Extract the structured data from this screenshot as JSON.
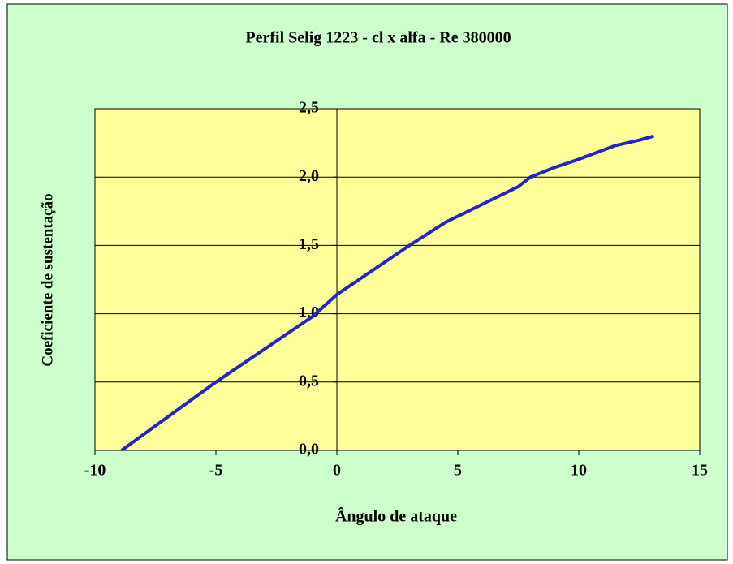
{
  "chart_data": {
    "type": "line",
    "title": "Perfil Selig 1223 - cl x alfa - Re 380000",
    "xlabel": "Ângulo de ataque",
    "ylabel": "Coeficiente de sustentação",
    "x": [
      -8.9,
      -5,
      -1,
      0,
      2,
      3,
      4.5,
      6,
      7.5,
      8,
      9,
      10,
      11.5,
      12.5,
      13.1
    ],
    "series": [
      {
        "name": "cl",
        "color": "#2424c8",
        "values": [
          0.0,
          0.5,
          0.98,
          1.14,
          1.38,
          1.5,
          1.67,
          1.8,
          1.93,
          2.0,
          2.07,
          2.13,
          2.23,
          2.27,
          2.3
        ]
      }
    ],
    "xlim": [
      -10,
      15
    ],
    "xticks": [
      -10,
      -5,
      0,
      5,
      10,
      15
    ],
    "ylim": [
      0,
      2.5
    ],
    "yticks": [
      {
        "value": 0,
        "label": "0,0"
      },
      {
        "value": 0.5,
        "label": "0,5"
      },
      {
        "value": 1,
        "label": "1,0"
      },
      {
        "value": 1.5,
        "label": "1,5"
      },
      {
        "value": 2,
        "label": "2,0"
      },
      {
        "value": 2.5,
        "label": "2,5"
      }
    ],
    "grid": true,
    "plot_background": "#ffff99",
    "background": "#ccffcc"
  }
}
